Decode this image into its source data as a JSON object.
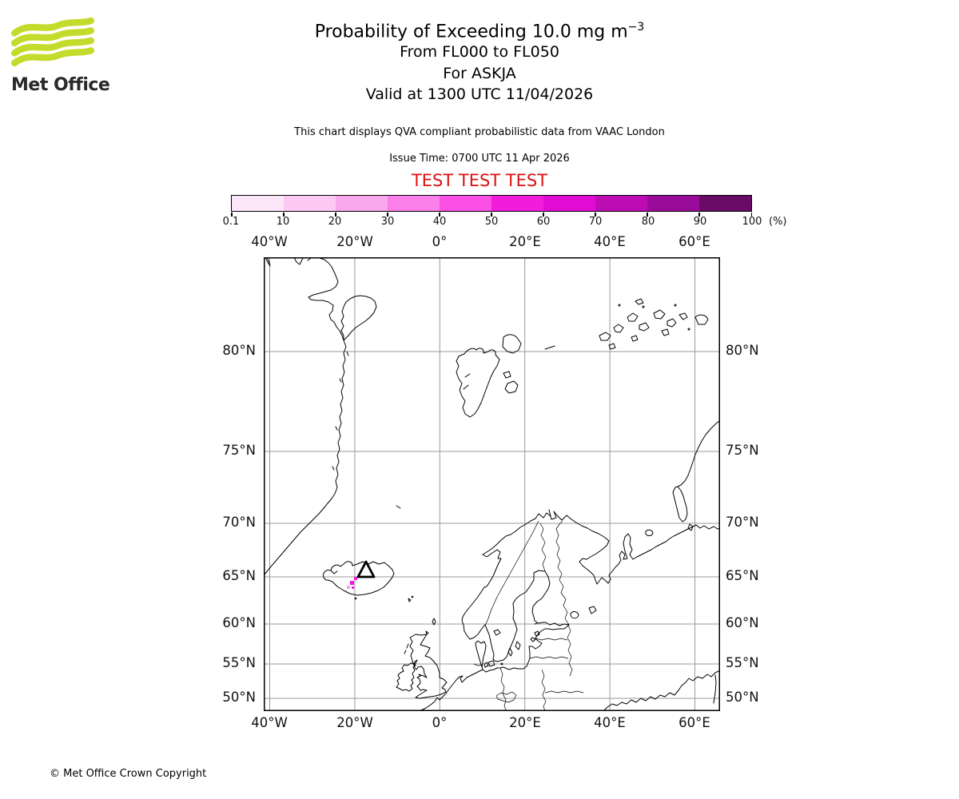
{
  "branding": {
    "logo_text": "Met Office",
    "logo_green": "#c3db2a"
  },
  "header": {
    "title_prefix": "Probability of Exceeding 10.0 mg m",
    "title_sup": "−3",
    "subtitle1": "From FL000 to FL050",
    "subtitle2": "For ASKJA",
    "subtitle3": "Valid at 1300 UTC 11/04/2026",
    "note": "This chart displays QVA compliant probabilistic data from VAAC London",
    "issue_time": "Issue Time: 0700 UTC 11 Apr 2026"
  },
  "test_banner": {
    "text": "TEST TEST TEST",
    "color": "#dd1111"
  },
  "colorbar": {
    "labels": [
      "0.1",
      "10",
      "20",
      "30",
      "40",
      "50",
      "60",
      "70",
      "80",
      "90",
      "100"
    ],
    "unit": "(%)",
    "colors": [
      "#fce7fa",
      "#fbc9f3",
      "#faa8ee",
      "#fb80ea",
      "#fb4fe6",
      "#f21cdd",
      "#e00cd4",
      "#bd0cb4",
      "#9b0b9b",
      "#6a0b67"
    ]
  },
  "map": {
    "projection": "Mercator",
    "lon_labels": [
      "40°W",
      "20°W",
      "0°",
      "20°E",
      "40°E",
      "60°E"
    ],
    "lat_labels": [
      "80°N",
      "75°N",
      "70°N",
      "65°N",
      "60°N",
      "55°N",
      "50°N"
    ],
    "volcano_name": "ASKJA",
    "volcano_marker": "triangle-icon",
    "probability_patch_color": "#f712df",
    "probability_patch_light": "#fa9ff0",
    "gridline_color": "#9a9a9a"
  },
  "footer": {
    "copyright": "© Met Office Crown Copyright"
  }
}
